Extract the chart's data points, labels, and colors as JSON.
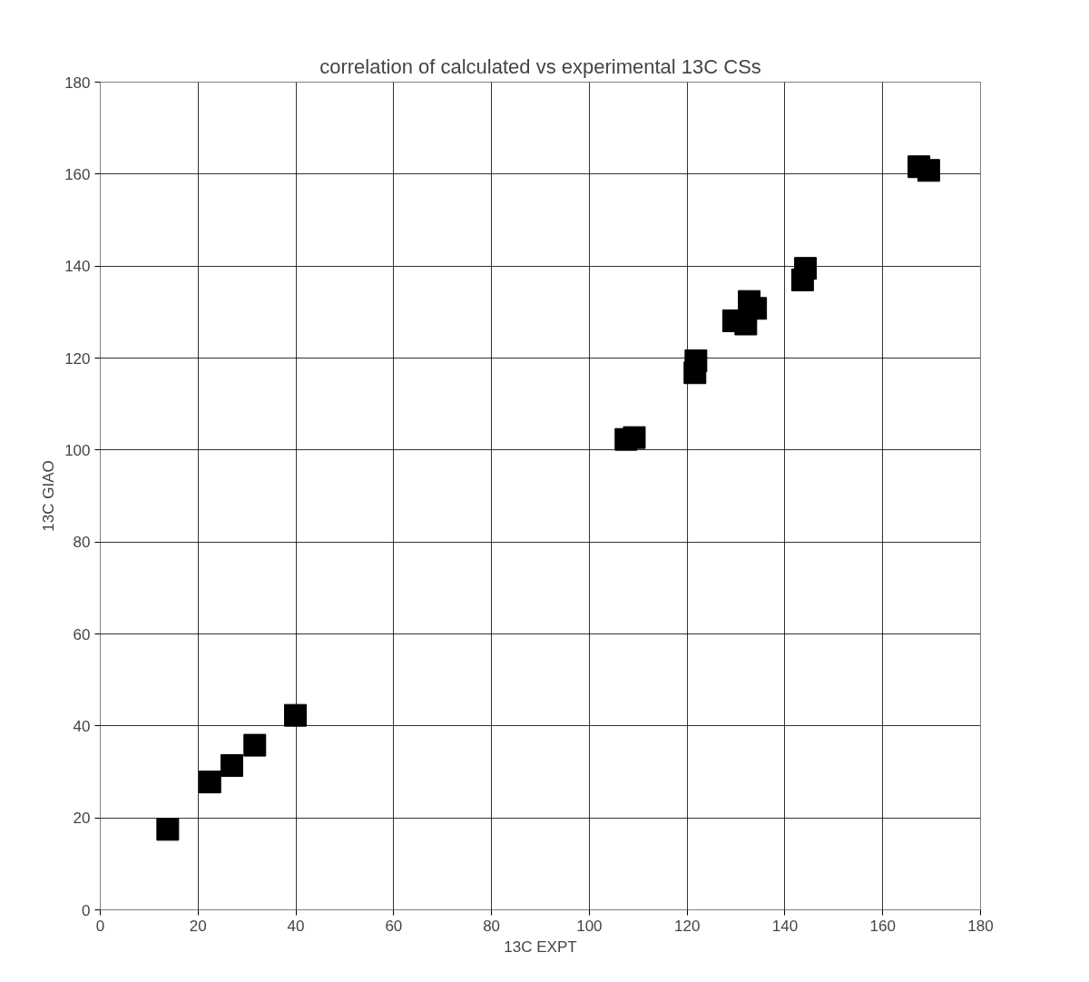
{
  "chart_data": {
    "type": "scatter",
    "title": "correlation of calculated vs experimental 13C CSs",
    "xlabel": "13C EXPT",
    "ylabel": "13C GIAO",
    "x": [
      13.8,
      22.4,
      26.9,
      31.6,
      39.9,
      107.5,
      109.2,
      121.8,
      121.6,
      129.5,
      132.0,
      132.7,
      134.0,
      144.2,
      143.6,
      167.4,
      169.4
    ],
    "values": [
      17.5,
      27.8,
      31.4,
      35.8,
      42.3,
      102.3,
      102.7,
      119.4,
      116.8,
      128.1,
      127.4,
      132.3,
      130.8,
      139.5,
      137.0,
      161.6,
      160.8
    ],
    "color": "#000000",
    "marker": "square",
    "xlim": [
      0,
      180
    ],
    "ylim": [
      0,
      180
    ],
    "xticks": [
      0,
      20,
      40,
      60,
      80,
      100,
      120,
      140,
      160,
      180
    ],
    "yticks": [
      0,
      20,
      40,
      60,
      80,
      100,
      120,
      140,
      160,
      180
    ],
    "grid": true
  }
}
